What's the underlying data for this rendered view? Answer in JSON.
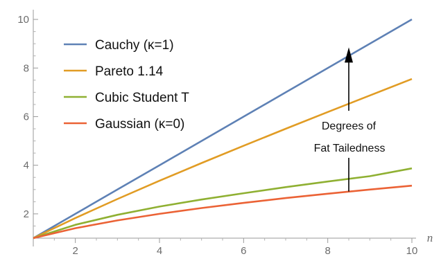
{
  "chart_data": {
    "type": "line",
    "xlabel": "n",
    "ylabel": "",
    "xlim": [
      1,
      10
    ],
    "ylim": [
      1,
      10.4
    ],
    "x_ticks": [
      2,
      4,
      6,
      8,
      10
    ],
    "y_ticks": [
      2,
      4,
      6,
      8,
      10
    ],
    "x_tick_labels": [
      "2",
      "4",
      "6",
      "8",
      "10"
    ],
    "y_tick_labels": [
      "2",
      "4",
      "6",
      "8",
      "10"
    ],
    "grid": false,
    "legend_position": "top-left",
    "x": [
      1,
      2,
      3,
      4,
      5,
      6,
      7,
      8,
      9,
      10
    ],
    "series": [
      {
        "name": "Cauchy (κ=1)",
        "color": "#5e81b5",
        "values": [
          1,
          2,
          3,
          4,
          5,
          6,
          7,
          8,
          9,
          10
        ]
      },
      {
        "name": "Pareto 1.14",
        "color": "#e19c24",
        "values": [
          1,
          1.83,
          2.61,
          3.36,
          4.09,
          4.8,
          5.5,
          6.19,
          6.87,
          7.55
        ]
      },
      {
        "name": "Cubic Student T",
        "color": "#8fb032",
        "values": [
          1,
          1.55,
          1.96,
          2.3,
          2.59,
          2.85,
          3.1,
          3.33,
          3.55,
          3.87
        ]
      },
      {
        "name": "Gaussian (κ=0)",
        "color": "#eb6235",
        "values": [
          1,
          1.41,
          1.73,
          2.0,
          2.24,
          2.45,
          2.65,
          2.83,
          3.0,
          3.16
        ]
      }
    ],
    "annotation": {
      "lines": [
        "Degrees of",
        "Fat Tailedness"
      ],
      "x": 8.5,
      "y_from": 2.92,
      "y_to": 8.85
    }
  }
}
